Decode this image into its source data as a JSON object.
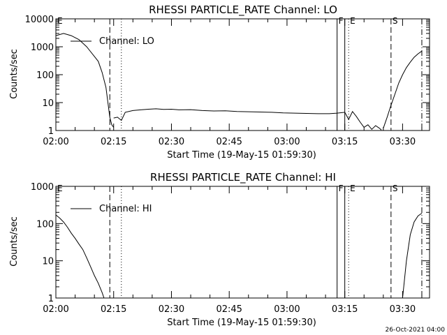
{
  "footer_timestamp": "26-Oct-2021 04:00",
  "chart_data": [
    {
      "type": "line",
      "title": "RHESSI PARTICLE_RATE Channel: LO",
      "xlabel": "Start Time (19-May-15 01:59:30)",
      "ylabel": "Counts/sec",
      "yscale": "log",
      "ylim": [
        1,
        10000
      ],
      "yticks": [
        1,
        10,
        100,
        1000,
        10000
      ],
      "ytick_labels": [
        "1",
        "10",
        "100",
        "1000",
        "10000"
      ],
      "xlim": [
        "02:00",
        "03:37"
      ],
      "xticks": [
        "02:00",
        "02:15",
        "02:30",
        "02:45",
        "03:00",
        "03:15",
        "03:30"
      ],
      "legend": {
        "label": "Channel: LO",
        "placement": "top-left"
      },
      "event_markers": [
        {
          "label": "E",
          "time": "02:00",
          "style": "none"
        },
        {
          "label": "",
          "time": "02:14",
          "style": "dashed"
        },
        {
          "label": "",
          "time": "02:17",
          "style": "dotted"
        },
        {
          "label": "F",
          "time": "03:13",
          "style": "solid"
        },
        {
          "label": "",
          "time": "03:15",
          "style": "solid"
        },
        {
          "label": "E",
          "time": "03:16",
          "style": "dotted"
        },
        {
          "label": "S",
          "time": "03:27",
          "style": "dashed"
        },
        {
          "label": "",
          "time": "03:35",
          "style": "dashdot"
        }
      ],
      "series": [
        {
          "segments": [
            {
              "x": [
                "02:00",
                "02:02",
                "02:04",
                "02:06",
                "02:08",
                "02:10",
                "02:11",
                "02:12",
                "02:13",
                "02:13.5",
                "02:14",
                "02:14.5",
                "02:15"
              ],
              "y": [
                2500,
                3000,
                2500,
                1800,
                1000,
                450,
                300,
                120,
                35,
                10,
                3,
                1.6,
                1.3
              ]
            },
            {
              "x": [
                "02:15",
                "02:16",
                "02:17",
                "02:18",
                "02:20",
                "02:22",
                "02:24",
                "02:26",
                "02:28",
                "02:30",
                "02:32",
                "02:35",
                "02:38",
                "02:41",
                "02:44",
                "02:47",
                "02:50",
                "02:53",
                "02:56",
                "02:59",
                "03:02",
                "03:05",
                "03:08",
                "03:11",
                "03:13",
                "03:15",
                "03:16",
                "03:17",
                "03:18",
                "03:19"
              ],
              "y": [
                2.8,
                3,
                2.3,
                4.5,
                5.2,
                5.5,
                5.8,
                6,
                5.7,
                5.8,
                5.5,
                5.6,
                5.2,
                5,
                5.1,
                4.8,
                4.7,
                4.6,
                4.5,
                4.3,
                4.2,
                4.1,
                4,
                4,
                4.2,
                4.5,
                2.5,
                4.8,
                3.2,
                2
              ]
            },
            {
              "x": [
                "03:19",
                "03:20",
                "03:21",
                "03:22",
                "03:23",
                "03:24",
                "03:24.5"
              ],
              "y": [
                2,
                1.3,
                1.6,
                1.1,
                1.5,
                1.2,
                1.05
              ]
            },
            {
              "x": [
                "03:25",
                "03:26",
                "03:27",
                "03:28",
                "03:29",
                "03:30",
                "03:31",
                "03:32",
                "03:33",
                "03:34",
                "03:35"
              ],
              "y": [
                1.2,
                3,
                8,
                20,
                50,
                100,
                180,
                280,
                420,
                560,
                700
              ]
            }
          ]
        }
      ]
    },
    {
      "type": "line",
      "title": "RHESSI PARTICLE_RATE Channel: HI",
      "xlabel": "Start Time (19-May-15 01:59:30)",
      "ylabel": "Counts/sec",
      "yscale": "log",
      "ylim": [
        1,
        1000
      ],
      "yticks": [
        1,
        10,
        100,
        1000
      ],
      "ytick_labels": [
        "1",
        "10",
        "100",
        "1000"
      ],
      "xlim": [
        "02:00",
        "03:37"
      ],
      "xticks": [
        "02:00",
        "02:15",
        "02:30",
        "02:45",
        "03:00",
        "03:15",
        "03:30"
      ],
      "legend": {
        "label": "Channel: HI",
        "placement": "top-left"
      },
      "event_markers": [
        {
          "label": "E",
          "time": "02:00",
          "style": "none"
        },
        {
          "label": "",
          "time": "02:14",
          "style": "dashed"
        },
        {
          "label": "",
          "time": "02:17",
          "style": "dotted"
        },
        {
          "label": "F",
          "time": "03:13",
          "style": "solid"
        },
        {
          "label": "",
          "time": "03:15",
          "style": "solid"
        },
        {
          "label": "E",
          "time": "03:16",
          "style": "dotted"
        },
        {
          "label": "S",
          "time": "03:27",
          "style": "dashed"
        },
        {
          "label": "",
          "time": "03:35",
          "style": "dashdot"
        }
      ],
      "series": [
        {
          "segments": [
            {
              "x": [
                "02:00",
                "02:01",
                "02:02",
                "02:03",
                "02:04",
                "02:05",
                "02:06",
                "02:07",
                "02:08",
                "02:09",
                "02:10",
                "02:11",
                "02:12",
                "02:12.5"
              ],
              "y": [
                170,
                140,
                110,
                80,
                55,
                40,
                28,
                20,
                12,
                7,
                4,
                2.5,
                1.4,
                1
              ]
            },
            {
              "x": [
                "03:30",
                "03:31",
                "03:32",
                "03:33",
                "03:34",
                "03:35"
              ],
              "y": [
                1,
                10,
                50,
                110,
                160,
                190
              ]
            }
          ]
        }
      ]
    }
  ]
}
